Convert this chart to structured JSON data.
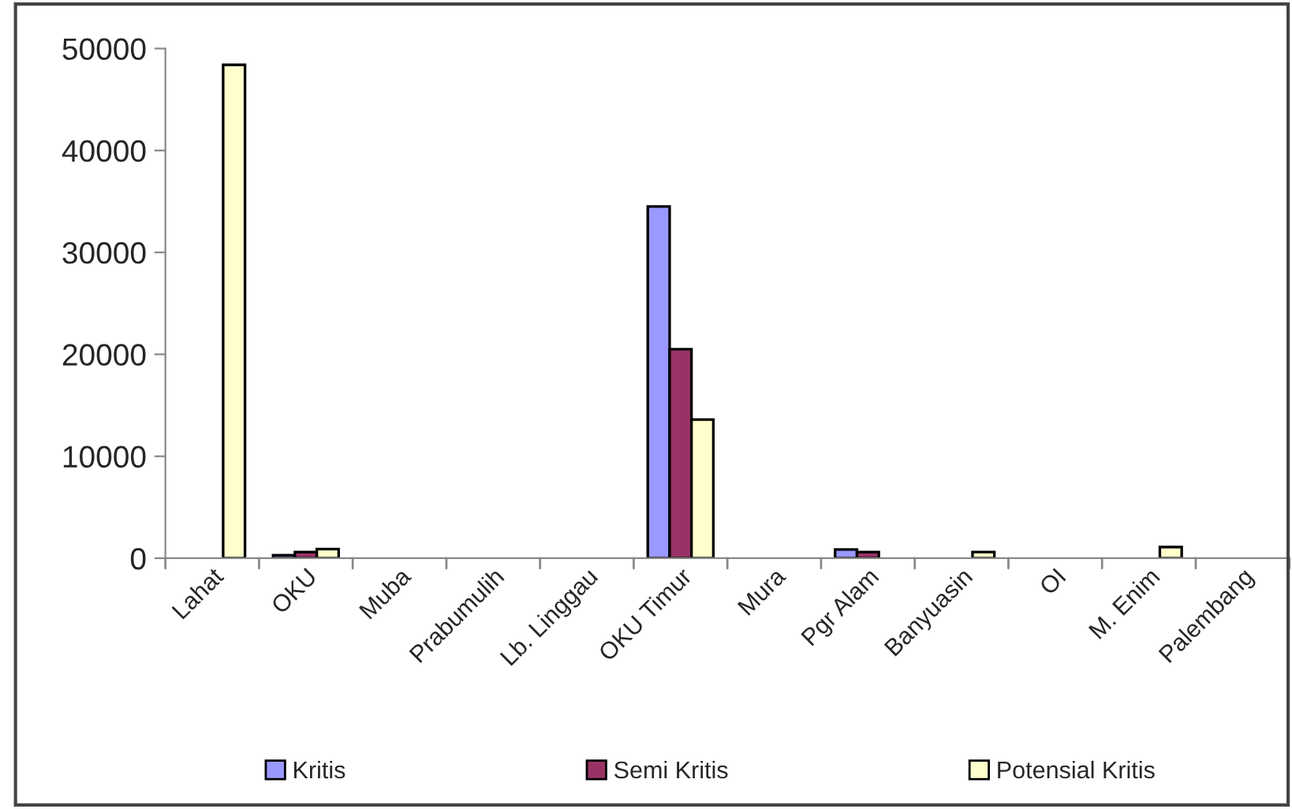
{
  "chart_data": {
    "type": "bar",
    "categories": [
      "Lahat",
      "OKU",
      "Muba",
      "Prabumulih",
      "Lb. Linggau",
      "OKU Timur",
      "Mura",
      "Pgr Alam",
      "Banyuasin",
      "OI",
      "M. Enim",
      "Palembang"
    ],
    "series": [
      {
        "name": "Kritis",
        "color": "#9999ff",
        "values": [
          0,
          300,
          0,
          0,
          0,
          34500,
          0,
          850,
          0,
          0,
          0,
          0
        ]
      },
      {
        "name": "Semi Kritis",
        "color": "#993366",
        "values": [
          0,
          600,
          0,
          0,
          0,
          20500,
          0,
          600,
          0,
          0,
          0,
          0
        ]
      },
      {
        "name": "Potensial Kritis",
        "color": "#ffffcc",
        "values": [
          48400,
          900,
          0,
          0,
          0,
          13600,
          0,
          0,
          600,
          0,
          1100,
          0
        ]
      }
    ],
    "ylim": [
      0,
      50000
    ],
    "yticks": [
      0,
      10000,
      20000,
      30000,
      40000,
      50000
    ],
    "grid": false,
    "legend": "bottom"
  }
}
